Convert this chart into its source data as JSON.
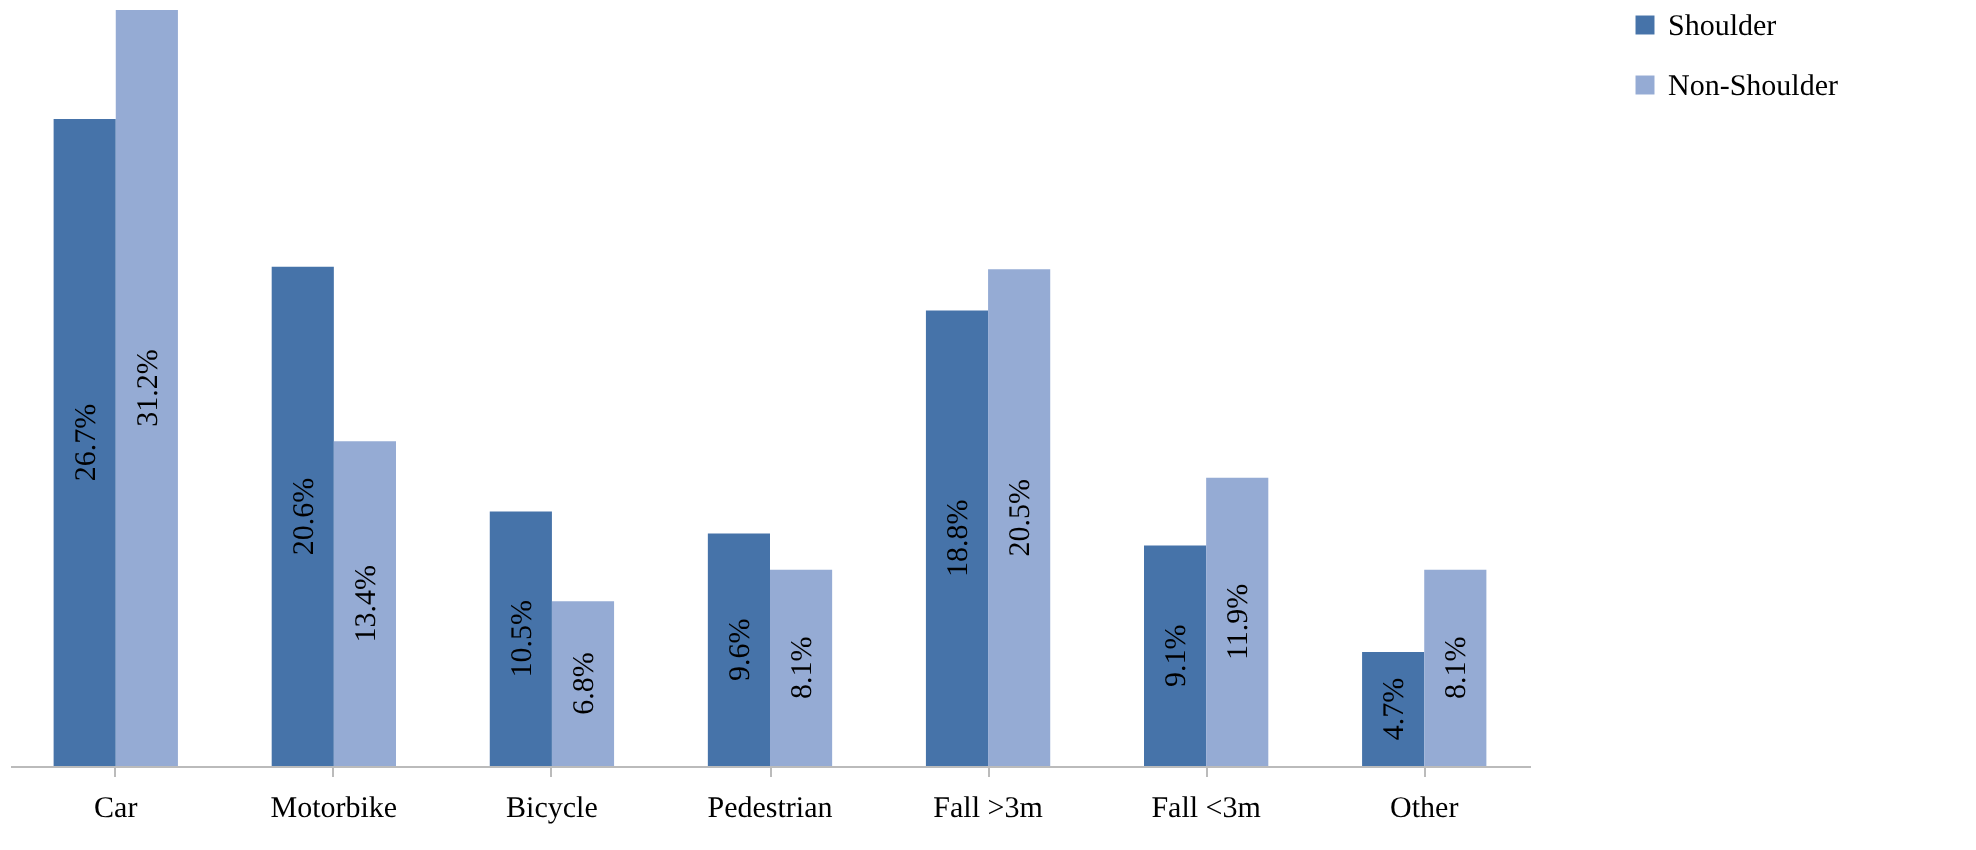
{
  "chart_data": {
    "type": "bar",
    "categories": [
      "Car",
      "Motorbike",
      "Bicycle",
      "Pedestrian",
      "Fall >3m",
      "Fall <3m",
      "Other"
    ],
    "series": [
      {
        "name": "Shoulder",
        "color": "#4673a9",
        "values": [
          26.7,
          20.6,
          10.5,
          9.6,
          18.8,
          9.1,
          4.7
        ],
        "value_labels": [
          "26.7%",
          "20.6%",
          "10.5%",
          "9.6%",
          "18.8%",
          "9.1%",
          "4.7%"
        ]
      },
      {
        "name": "Non-Shoulder",
        "color": "#95abd4",
        "values": [
          31.2,
          13.4,
          6.8,
          8.1,
          20.5,
          11.9,
          8.1
        ],
        "value_labels": [
          "31.2%",
          "13.4%",
          "6.8%",
          "8.1%",
          "20.5%",
          "11.9%",
          "8.1%"
        ]
      }
    ],
    "ylim": [
      0,
      31.2
    ],
    "legend": "right",
    "grid": false,
    "tick_labels": "x"
  }
}
